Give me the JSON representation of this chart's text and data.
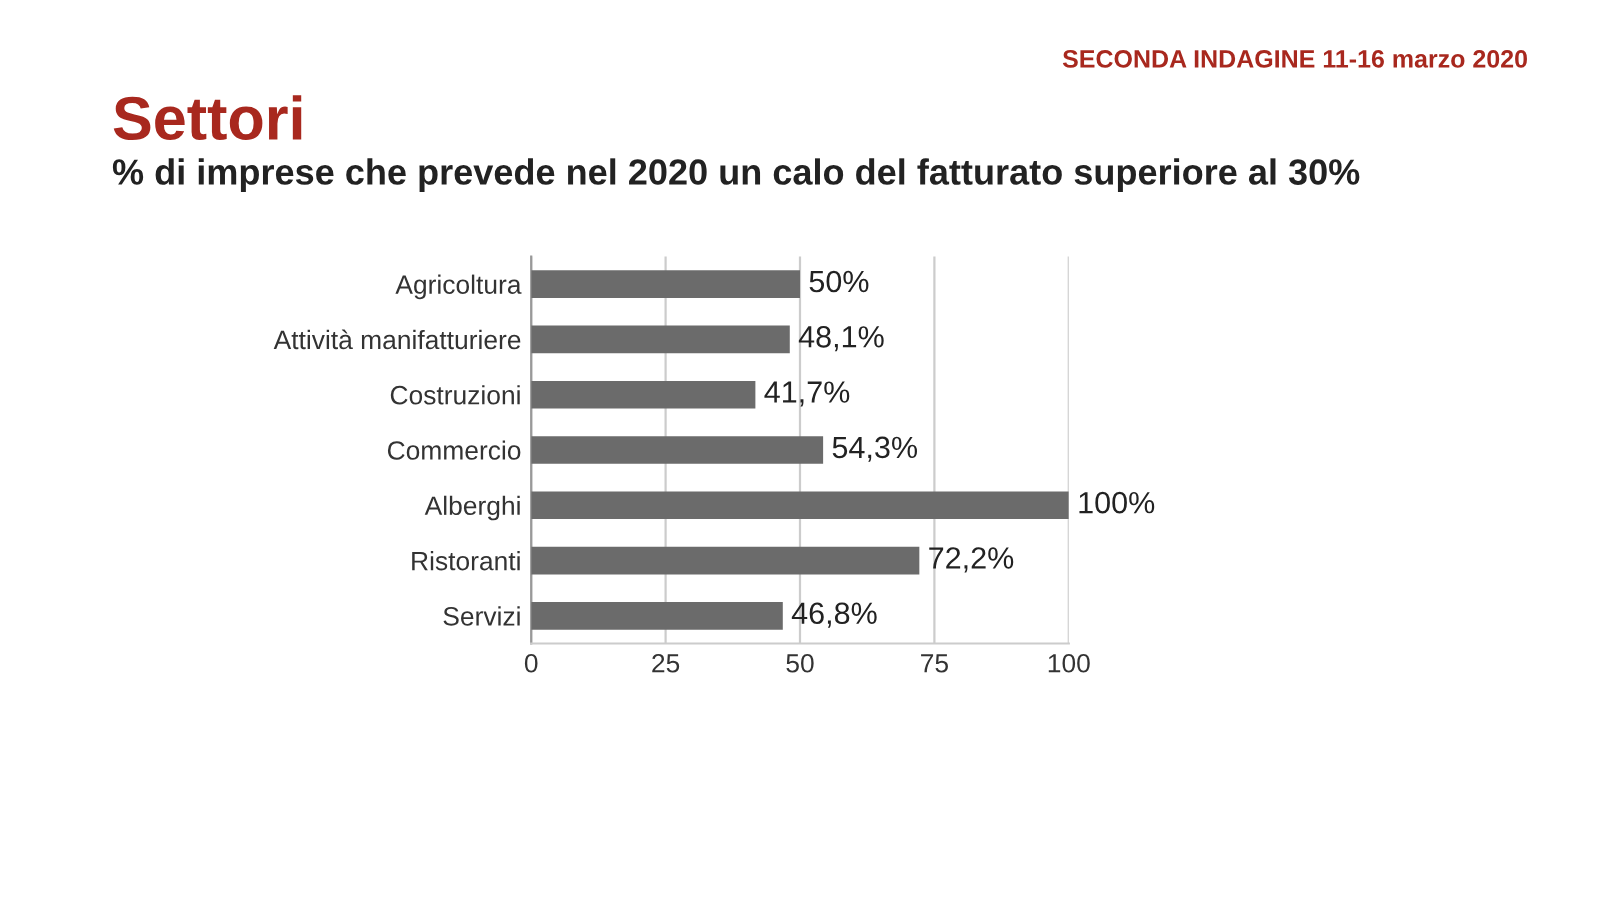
{
  "chart_data": {
    "type": "bar",
    "orientation": "horizontal",
    "title": "Settori",
    "subtitle": "% di imprese che prevede nel 2020 un calo del fatturato superiore al 30%",
    "annotations": [
      "SECONDA INDAGINE 11-16 marzo 2020"
    ],
    "categories": [
      "Agricoltura",
      "Attività manifatturiere",
      "Costruzioni",
      "Commercio",
      "Alberghi",
      "Ristoranti",
      "Servizi"
    ],
    "values": [
      50,
      48.1,
      41.7,
      54.3,
      100,
      72.2,
      46.8
    ],
    "value_labels": [
      "50%",
      "48,1%",
      "41,7%",
      "54,3%",
      "100%",
      "72,2%",
      "46,8%"
    ],
    "color": "#6b6b6b",
    "xlim": [
      0,
      100
    ],
    "xticks": [
      0,
      25,
      50,
      75,
      100
    ],
    "grid": "x",
    "legend": false
  }
}
